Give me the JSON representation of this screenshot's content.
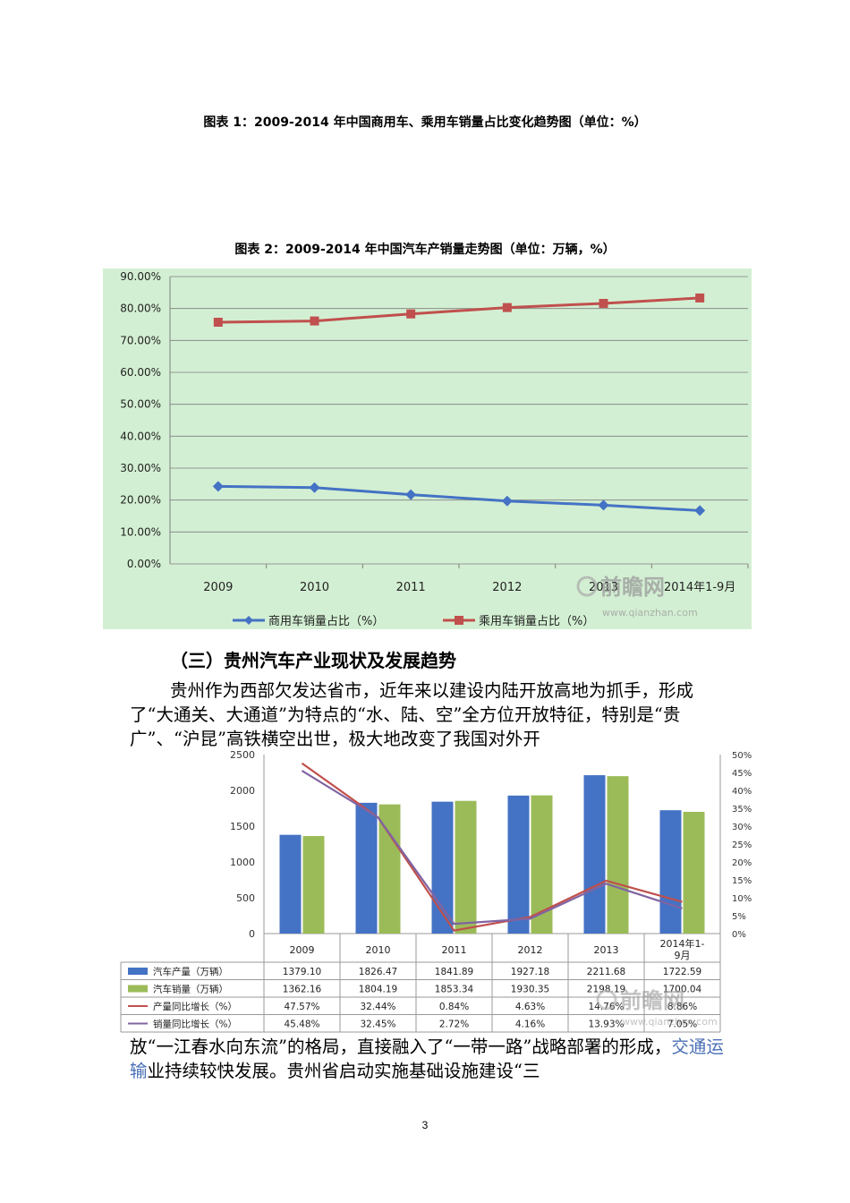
{
  "captions": {
    "chart1": "图表 1：2009-2014 年中国商用车、乘用车销量占比变化趋势图（单位：%）",
    "chart2": "图表 2：2009-2014 年中国汽车产销量走势图（单位：万辆，%）"
  },
  "heading": "（三）贵州汽车产业现状及发展趋势",
  "paragraph1": "贵州作为西部欠发达省市，近年来以建设内陆开放高地为抓手，形成了“大通关、大通道”为特点的“水、陆、空”全方位开放特征，特别是“贵广”、“沪昆”高铁横空出世，极大地改变了我国对外开",
  "paragraph2": {
    "before_link": "放“一江春水向东流”的格局，直接融入了“一带一路”战略部署的形成，",
    "link": "交通运输",
    "after_link": "业持续较快发展。贵州省启动实施基础设施建设“三"
  },
  "page_number": "3",
  "watermark": {
    "brand": "前瞻网",
    "url": "www.qianzhan.com"
  },
  "colors": {
    "chart_bg": "#d3efd3",
    "blue_series": "#4472c4",
    "red_series": "#c0504d",
    "green_series": "#9bbb59",
    "purple_series": "#8064a2"
  },
  "chart_data": [
    {
      "type": "line",
      "categories": [
        "2009",
        "2010",
        "2011",
        "2012",
        "2013",
        "2014年1-9月"
      ],
      "y_ticks": [
        "0.00%",
        "10.00%",
        "20.00%",
        "30.00%",
        "40.00%",
        "50.00%",
        "60.00%",
        "70.00%",
        "80.00%",
        "90.00%"
      ],
      "ylim": [
        0,
        90
      ],
      "grid": true,
      "legend_placement": "bottom",
      "series": [
        {
          "name": "商用车销量占比（%）",
          "values": [
            24.3,
            23.9,
            21.7,
            19.7,
            18.4,
            16.7
          ]
        },
        {
          "name": "乘用车销量占比（%）",
          "values": [
            75.7,
            76.1,
            78.3,
            80.3,
            81.6,
            83.3
          ]
        }
      ]
    },
    {
      "type": "bar",
      "categories": [
        "2009",
        "2010",
        "2011",
        "2012",
        "2013",
        "2014年1-9月"
      ],
      "y_left_ticks": [
        "0",
        "500",
        "1000",
        "1500",
        "2000",
        "2500"
      ],
      "y_left_lim": [
        0,
        2500
      ],
      "y_right_ticks": [
        "0%",
        "5%",
        "10%",
        "15%",
        "20%",
        "25%",
        "30%",
        "35%",
        "40%",
        "45%",
        "50%"
      ],
      "y_right_lim": [
        0,
        50
      ],
      "legend_placement": "table-bottom",
      "series": [
        {
          "name": "汽车产量（万辆）",
          "kind": "bar",
          "values": [
            1379.1,
            1826.47,
            1841.89,
            1927.18,
            2211.68,
            1722.59
          ],
          "labels": [
            "1379.10",
            "1826.47",
            "1841.89",
            "1927.18",
            "2211.68",
            "1722.59"
          ]
        },
        {
          "name": "汽车销量（万辆）",
          "kind": "bar",
          "values": [
            1362.16,
            1804.19,
            1853.34,
            1930.35,
            2198.19,
            1700.04
          ],
          "labels": [
            "1362.16",
            "1804.19",
            "1853.34",
            "1930.35",
            "2198.19",
            "1700.04"
          ]
        },
        {
          "name": "产量同比增长（%）",
          "kind": "line",
          "values": [
            47.57,
            32.44,
            0.84,
            4.63,
            14.76,
            8.86
          ],
          "labels": [
            "47.57%",
            "32.44%",
            "0.84%",
            "4.63%",
            "14.76%",
            "8.86%"
          ]
        },
        {
          "name": "销量同比增长（%）",
          "kind": "line",
          "values": [
            45.48,
            32.45,
            2.72,
            4.16,
            13.93,
            7.05
          ],
          "labels": [
            "45.48%",
            "32.45%",
            "2.72%",
            "4.16%",
            "13.93%",
            "7.05%"
          ]
        }
      ]
    }
  ]
}
